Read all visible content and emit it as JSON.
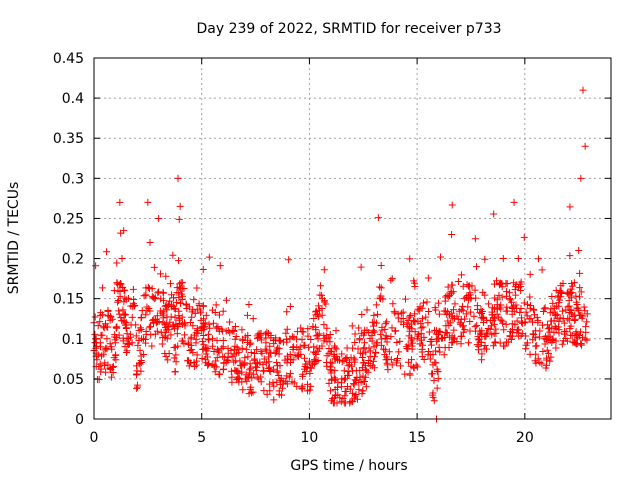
{
  "chart_data": {
    "type": "scatter",
    "title": "Day 239 of 2022, SRMTID for receiver p733",
    "xlabel": "GPS time / hours",
    "ylabel": "SRMTID / TECUs",
    "xlim": [
      0,
      24
    ],
    "ylim": [
      0,
      0.45
    ],
    "x_ticks": [
      0,
      5,
      10,
      15,
      20
    ],
    "x_tick_labels": [
      "0",
      "5",
      "10",
      "15",
      "20"
    ],
    "y_ticks": [
      0,
      0.05,
      0.1,
      0.15,
      0.2,
      0.25,
      0.3,
      0.35,
      0.4,
      0.45
    ],
    "y_tick_labels": [
      "0",
      "0.05",
      "0.1",
      "0.15",
      "0.2",
      "0.25",
      "0.3",
      "0.35",
      "0.4",
      "0.45"
    ],
    "grid": true,
    "marker": "+",
    "marker_color": "#ff0000",
    "series": [
      {
        "name": "SRMTID",
        "points_note": "dense cloud (~thousands of points); representative samples below",
        "x": [
          0.0,
          0.1,
          0.2,
          0.3,
          0.4,
          0.5,
          0.6,
          0.8,
          1.0,
          1.2,
          1.3,
          1.4,
          1.5,
          1.6,
          1.8,
          2.0,
          2.2,
          2.4,
          2.5,
          2.6,
          2.8,
          3.0,
          3.2,
          3.4,
          3.6,
          3.8,
          3.9,
          4.0,
          4.1,
          4.2,
          4.5,
          5.0,
          5.5,
          6.0,
          6.5,
          7.0,
          7.5,
          8.0,
          8.5,
          9.0,
          9.5,
          10.0,
          10.2,
          10.4,
          10.6,
          11.0,
          11.5,
          12.0,
          12.5,
          13.0,
          13.3,
          13.6,
          14.0,
          14.5,
          15.0,
          15.5,
          15.9,
          16.0,
          16.5,
          16.6,
          17.0,
          17.5,
          18.0,
          18.5,
          19.0,
          19.3,
          19.5,
          19.7,
          20.0,
          20.5,
          21.0,
          21.5,
          22.0,
          22.3,
          22.5,
          22.6,
          22.7,
          22.8
        ],
        "y": [
          0.12,
          0.1,
          0.08,
          0.09,
          0.13,
          0.07,
          0.1,
          0.09,
          0.08,
          0.27,
          0.2,
          0.16,
          0.12,
          0.1,
          0.14,
          0.06,
          0.1,
          0.13,
          0.27,
          0.22,
          0.15,
          0.25,
          0.12,
          0.1,
          0.14,
          0.08,
          0.3,
          0.265,
          0.17,
          0.12,
          0.1,
          0.11,
          0.1,
          0.09,
          0.08,
          0.07,
          0.065,
          0.07,
          0.06,
          0.075,
          0.08,
          0.07,
          0.09,
          0.1,
          0.15,
          0.06,
          0.05,
          0.06,
          0.07,
          0.09,
          0.15,
          0.1,
          0.11,
          0.09,
          0.1,
          0.12,
          0.0,
          0.1,
          0.13,
          0.23,
          0.12,
          0.15,
          0.11,
          0.13,
          0.2,
          0.15,
          0.27,
          0.2,
          0.12,
          0.11,
          0.1,
          0.13,
          0.14,
          0.17,
          0.21,
          0.3,
          0.41,
          0.34
        ]
      }
    ]
  }
}
